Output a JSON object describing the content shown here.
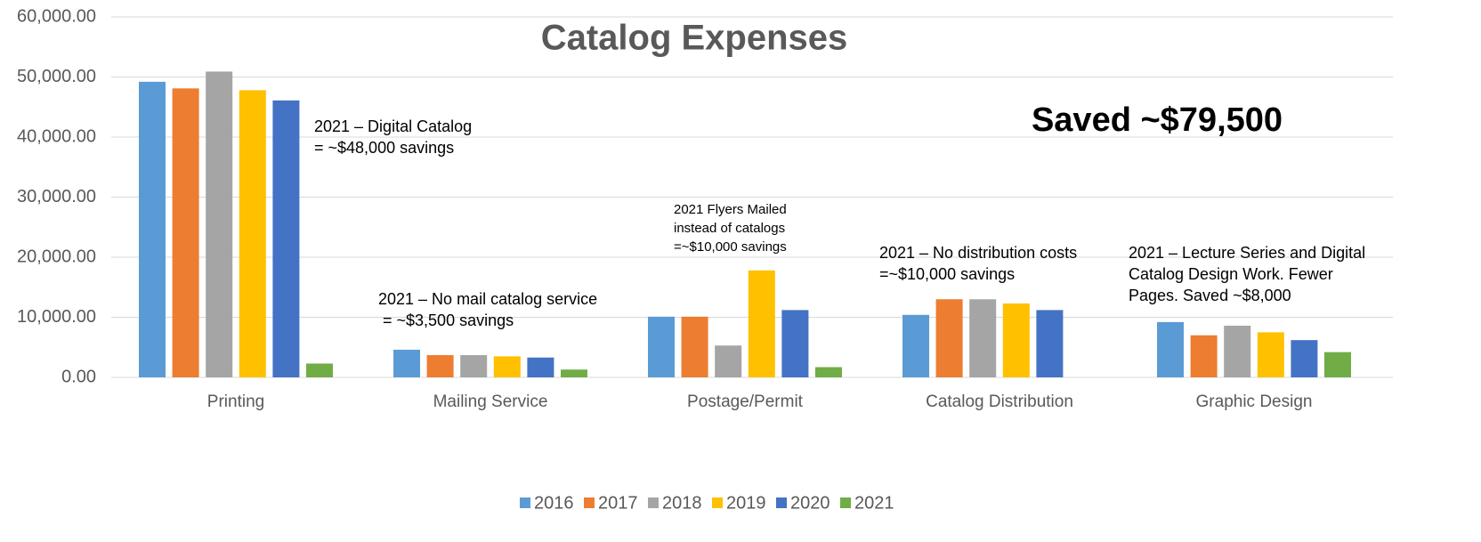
{
  "chart_data": {
    "type": "bar",
    "title": "Catalog Expenses",
    "categories": [
      "Printing",
      "Mailing Service",
      "Postage/Permit",
      "Catalog Distribution",
      "Graphic Design"
    ],
    "series": [
      {
        "name": "2016",
        "color": "#5b9bd5",
        "values": [
          49200,
          4600,
          10100,
          10400,
          9200
        ]
      },
      {
        "name": "2017",
        "color": "#ed7d31",
        "values": [
          48100,
          3700,
          10100,
          13000,
          7000
        ]
      },
      {
        "name": "2018",
        "color": "#a5a5a5",
        "values": [
          50900,
          3700,
          5300,
          13000,
          8600
        ]
      },
      {
        "name": "2019",
        "color": "#ffc000",
        "values": [
          47800,
          3500,
          17800,
          12300,
          7500
        ]
      },
      {
        "name": "2020",
        "color": "#4472c4",
        "values": [
          46100,
          3300,
          11200,
          11200,
          6200
        ]
      },
      {
        "name": "2021",
        "color": "#70ad47",
        "values": [
          2300,
          1300,
          1700,
          null,
          4200
        ]
      }
    ],
    "ylim": [
      0,
      60000
    ],
    "yticks": [
      {
        "value": 0,
        "label": "0.00"
      },
      {
        "value": 10000,
        "label": "10,000.00"
      },
      {
        "value": 20000,
        "label": "20,000.00"
      },
      {
        "value": 30000,
        "label": "30,000.00"
      },
      {
        "value": 40000,
        "label": "40,000.00"
      },
      {
        "value": 50000,
        "label": "50,000.00"
      },
      {
        "value": 60000,
        "label": "60,000.00"
      }
    ],
    "grid": true,
    "legend": "bottom",
    "headline": "Saved ~$79,500",
    "annotations": [
      {
        "lines": [
          "2021 – Digital Catalog",
          "= ~$48,000 savings"
        ]
      },
      {
        "lines": [
          "2021 – No mail catalog service",
          " = ~$3,500 savings"
        ]
      },
      {
        "lines": [
          "2021 Flyers Mailed",
          "instead of catalogs",
          "=~$10,000 savings"
        ]
      },
      {
        "lines": [
          "2021 – No distribution costs",
          "=~$10,000 savings"
        ]
      },
      {
        "lines": [
          "2021 – Lecture Series and Digital",
          "Catalog Design Work. Fewer",
          "Pages. Saved ~$8,000"
        ]
      }
    ]
  }
}
